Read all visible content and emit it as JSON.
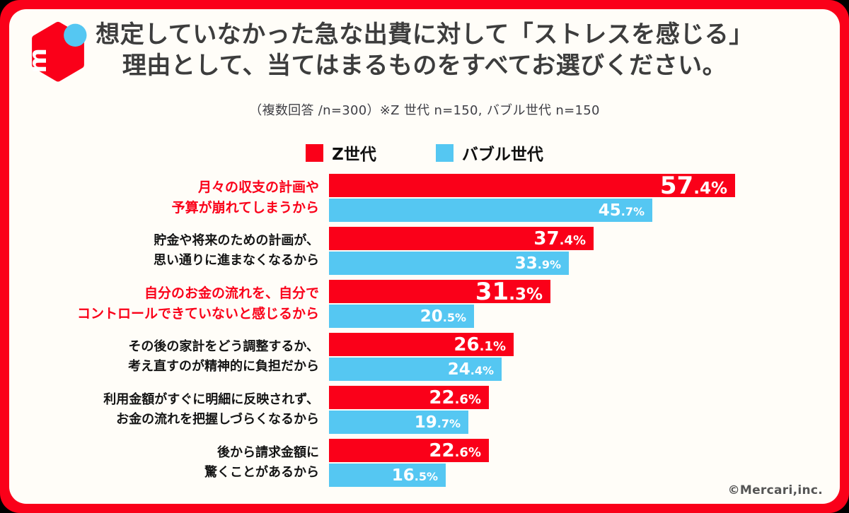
{
  "colors": {
    "brand_red": "#fa0019",
    "sky_blue": "#55c7f2",
    "card_bg": "#fffdf8"
  },
  "header": {
    "title_line1": "想定していなかった急な出費に対して「ストレスを感じる」",
    "title_line2": "理由として、当てはまるものをすべてお選びください。",
    "note": "（複数回答 /n=300）※Z 世代 n=150, バブル世代 n=150"
  },
  "logo": {
    "letter": "m"
  },
  "footer": {
    "copyright": "©Mercari,inc."
  },
  "chart_data": {
    "type": "bar",
    "orientation": "horizontal",
    "unit": "%",
    "categories": [
      "月々の収支の計画や\n予算が崩れてしまうから",
      "貯金や将来のための計画が、\n思い通りに進まなくなるから",
      "自分のお金の流れを、自分で\nコントロールできていないと感じるから",
      "その後の家計をどう調整するか、\n考え直すのが精神的に負担だから",
      "利用金額がすぐに明細に反映されず、\nお金の流れを把握しづらくなるから",
      "後から請求金額に\n驚くことがあるから"
    ],
    "emphasized_categories": [
      0,
      2
    ],
    "series": [
      {
        "name": "Z世代",
        "color": "#fa0019",
        "values": [
          57.4,
          37.4,
          31.3,
          26.1,
          22.6,
          22.6
        ]
      },
      {
        "name": "バブル世代",
        "color": "#55c7f2",
        "values": [
          45.7,
          33.9,
          20.5,
          24.4,
          19.7,
          16.5
        ]
      }
    ],
    "xlim": [
      0,
      60
    ],
    "value_labels": "inside-end",
    "legend_position": "top-center",
    "grid": false
  }
}
